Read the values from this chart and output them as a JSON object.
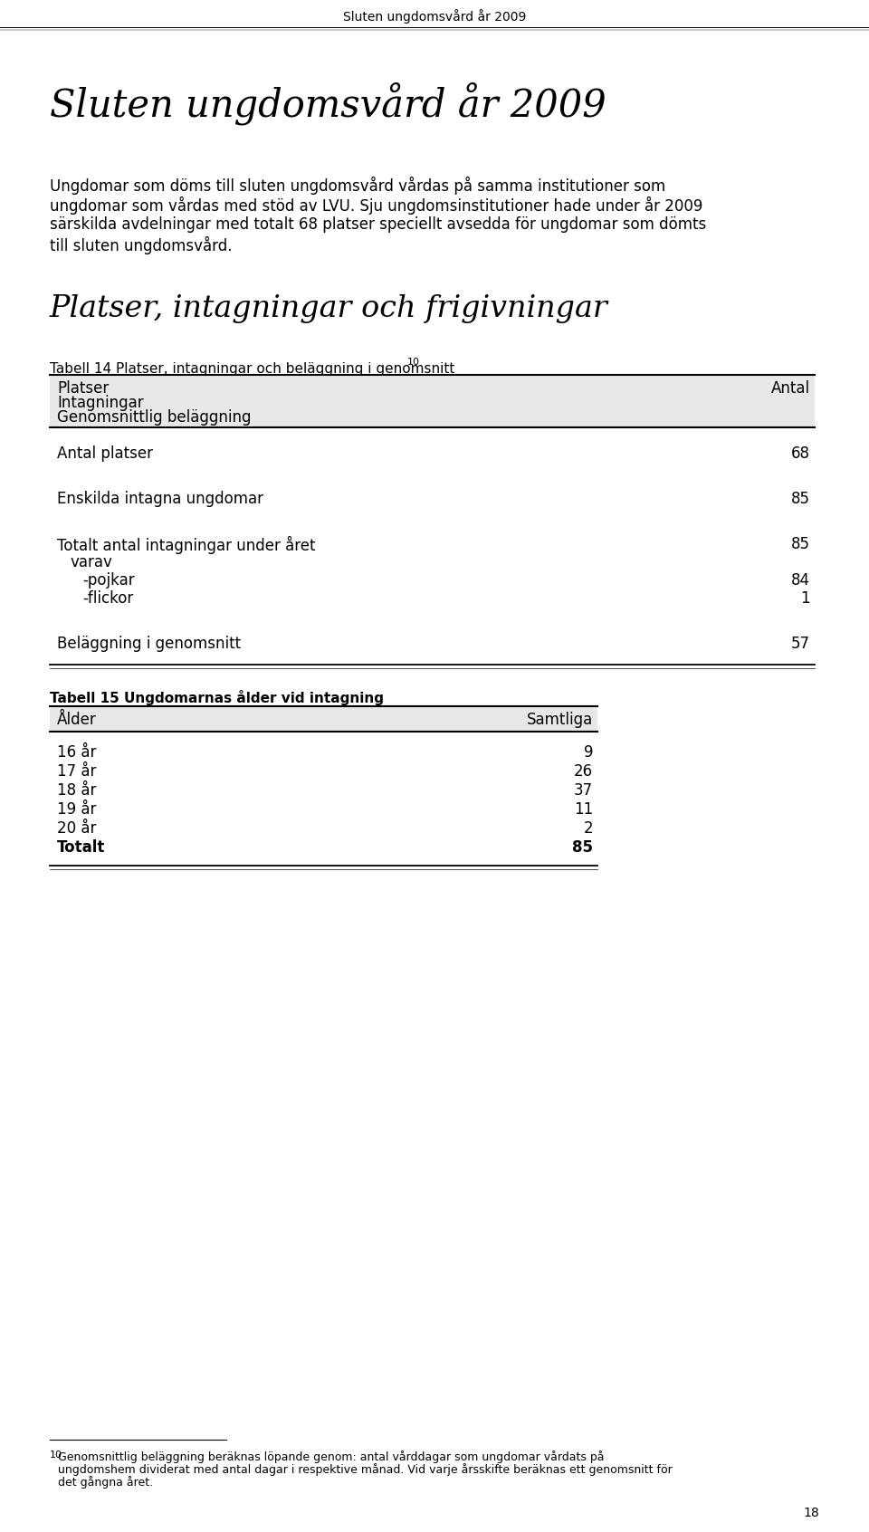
{
  "page_title": "Sluten ungdomsvård år 2009",
  "main_title": "Sluten ungdomsvård år 2009",
  "intro_line1": "Ungdomar som döms till sluten ungdomsvård vårdas på samma institutioner som",
  "intro_line2": "ungdomar som vårdas med stöd av LVU. Sju ungdomsinstitutioner hade under år 2009",
  "intro_line3": "särskilda avdelningar med totalt 68 platser speciellt avsedda för ungdomar som dömts",
  "intro_line4": "till sluten ungdomsvård.",
  "section_heading": "Platser, intagningar och frigivningar",
  "table14_title": "Tabell 14 Platser, intagningar och beläggning i genomsnitt",
  "table14_superscript": "10",
  "table14_header_col1": "Platser",
  "table14_header_col2": "Intagningar",
  "table14_header_col3": "Genomsnittlig beläggning",
  "table14_header_right": "Antal",
  "table14_rows": [
    {
      "label": "Antal platser",
      "value": "68",
      "indent": 0,
      "extra_before": 0
    },
    {
      "label": "Enskilda intagna ungdomar",
      "value": "85",
      "indent": 0,
      "extra_before": 30
    },
    {
      "label": "Totalt antal intagningar under året",
      "value": "85",
      "indent": 0,
      "extra_before": 30
    },
    {
      "label": "varav",
      "value": "",
      "indent": 1,
      "extra_before": 0
    },
    {
      "label": "-pojkar",
      "value": "84",
      "indent": 2,
      "extra_before": 0
    },
    {
      "label": "-flickor",
      "value": "1",
      "indent": 2,
      "extra_before": 0
    },
    {
      "label": "Beläggning i genomsnitt",
      "value": "57",
      "indent": 0,
      "extra_before": 30
    }
  ],
  "table15_title": "Tabell 15 Ungdomarnas ålder vid intagning",
  "table15_header_left": "Ålder",
  "table15_header_right": "Samtliga",
  "table15_rows": [
    {
      "label": "16 år",
      "value": "9",
      "bold": false
    },
    {
      "label": "17 år",
      "value": "26",
      "bold": false
    },
    {
      "label": "18 år",
      "value": "37",
      "bold": false
    },
    {
      "label": "19 år",
      "value": "11",
      "bold": false
    },
    {
      "label": "20 år",
      "value": "2",
      "bold": false
    },
    {
      "label": "Totalt",
      "value": "85",
      "bold": true
    }
  ],
  "footnote_number": "10",
  "footnote_line1": "Genomsnittlig beläggning beräknas löpande genom: antal vårddagar som ungdomar vårdats på",
  "footnote_line2": "ungdomshem dividerat med antal dagar i respektive månad. Vid varje årsskifte beräknas ett genomsnitt för",
  "footnote_line3": "det gångna året.",
  "page_number": "18",
  "bg_color": "#ffffff",
  "header_bg_color": "#e8e8e8",
  "text_color": "#000000"
}
